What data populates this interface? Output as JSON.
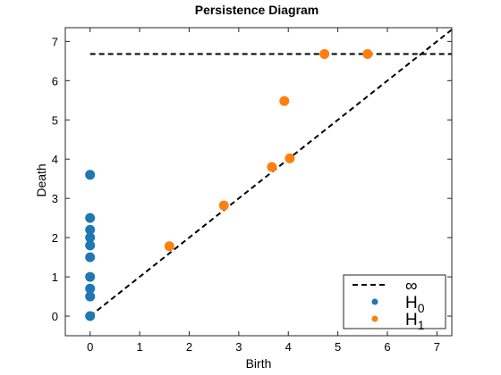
{
  "chart_data": {
    "type": "scatter",
    "title": "Persistence Diagram",
    "xlabel": "Birth",
    "ylabel": "Death",
    "xlim": [
      -0.5,
      7.3
    ],
    "ylim": [
      -0.5,
      7.35
    ],
    "xticks": [
      0,
      1,
      2,
      3,
      4,
      5,
      6,
      7
    ],
    "yticks": [
      0,
      1,
      2,
      3,
      4,
      5,
      6,
      7
    ],
    "infinity_level": 6.68,
    "legend_position": "bottom-right",
    "legend": [
      {
        "label": "∞",
        "kind": "dashed-line",
        "color": "#000000"
      },
      {
        "label": "H",
        "sub": "0",
        "kind": "marker",
        "color": "#1f77b4"
      },
      {
        "label": "H",
        "sub": "1",
        "kind": "marker",
        "color": "#ff7f0e"
      }
    ],
    "series": [
      {
        "color": "#1f77b4",
        "points": [
          [
            0,
            0.0
          ],
          [
            0,
            0.5
          ],
          [
            0,
            0.7
          ],
          [
            0,
            1.0
          ],
          [
            0,
            1.5
          ],
          [
            0,
            1.8
          ],
          [
            0,
            2.0
          ],
          [
            0,
            2.2
          ],
          [
            0,
            2.5
          ],
          [
            0,
            3.6
          ]
        ]
      },
      {
        "color": "#ff7f0e",
        "points": [
          [
            1.6,
            1.78
          ],
          [
            2.7,
            2.82
          ],
          [
            3.67,
            3.8
          ],
          [
            4.03,
            4.02
          ],
          [
            3.92,
            5.48
          ],
          [
            4.73,
            6.68
          ],
          [
            5.6,
            6.68
          ]
        ]
      }
    ]
  }
}
